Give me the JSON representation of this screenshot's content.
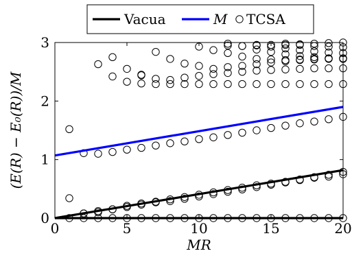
{
  "chart_data": {
    "type": "scatter",
    "xlabel": "MR",
    "ylabel": "(E(R) − E₀(R))/M",
    "xlim": [
      0,
      20
    ],
    "ylim": [
      0,
      3
    ],
    "xticks": [
      0,
      5,
      10,
      15,
      20
    ],
    "yticks": [
      0,
      1,
      2,
      3
    ],
    "x_tick_labels": [
      "0",
      "5",
      "10",
      "15",
      "20"
    ],
    "y_tick_labels": [
      "0",
      "1",
      "2",
      "3"
    ],
    "legend_position": "top-center",
    "grid": false,
    "series": [
      {
        "name": "Vacua",
        "kind": "line",
        "color": "#000000",
        "x": [
          0,
          20
        ],
        "y": [
          0,
          0.82
        ]
      },
      {
        "name": "Vacua",
        "kind": "line",
        "color": "#000000",
        "x": [
          0,
          20
        ],
        "y": [
          0,
          0
        ]
      },
      {
        "name": "M",
        "kind": "line",
        "color": "#0000ff",
        "x": [
          0,
          20
        ],
        "y": [
          1.07,
          1.9
        ]
      },
      {
        "name": "TCSA",
        "kind": "scatter",
        "marker": "open-circle",
        "color": "#000000",
        "x": [
          1,
          2,
          3,
          4,
          5,
          6,
          7,
          8,
          9,
          10,
          11,
          12,
          13,
          14,
          15,
          16,
          17,
          18,
          19,
          20,
          2,
          3,
          4,
          5,
          6,
          7,
          8,
          9,
          10,
          11,
          12,
          13,
          14,
          15,
          16,
          17,
          18,
          19,
          20,
          1,
          2,
          3,
          4,
          5,
          6,
          7,
          8,
          9,
          10,
          11,
          12,
          13,
          14,
          15,
          16,
          17,
          18,
          19,
          20,
          1,
          2,
          3,
          4,
          5,
          6,
          7,
          8,
          9,
          10,
          11,
          12,
          13,
          14,
          15,
          16,
          17,
          18,
          19,
          20,
          3,
          4,
          5,
          6,
          7,
          8,
          9,
          10,
          11,
          12,
          13,
          14,
          15,
          16,
          17,
          18,
          19,
          20,
          4,
          5,
          6,
          7,
          8,
          9,
          10,
          11,
          12,
          13,
          14,
          15,
          16,
          17,
          18,
          19,
          20,
          6,
          7,
          8,
          9,
          10,
          11,
          12,
          13,
          14,
          15,
          16,
          17,
          18,
          19,
          20,
          10,
          11,
          12,
          13,
          14,
          15,
          16,
          17,
          18,
          19,
          20,
          12,
          13,
          14,
          15,
          16,
          17,
          18,
          19,
          20,
          14,
          15,
          16,
          17,
          18,
          19,
          20,
          16,
          17,
          18,
          19,
          20,
          12,
          13,
          14,
          15,
          16,
          17,
          18,
          19,
          20
        ],
        "y": [
          0,
          0,
          0,
          0,
          0,
          0,
          0,
          0,
          0,
          0,
          0,
          0,
          0,
          0,
          0,
          0,
          0,
          0,
          0,
          0,
          0.08,
          0.1,
          0.15,
          0.19,
          0.23,
          0.27,
          0.29,
          0.33,
          0.37,
          0.41,
          0.45,
          0.49,
          0.53,
          0.57,
          0.61,
          0.65,
          0.69,
          0.71,
          0.75,
          0.34,
          0.08,
          0.12,
          0.15,
          0.21,
          0.25,
          0.28,
          0.32,
          0.36,
          0.4,
          0.44,
          0.48,
          0.52,
          0.56,
          0.59,
          0.62,
          0.66,
          0.7,
          0.74,
          0.79,
          1.52,
          1.11,
          1.1,
          1.13,
          1.17,
          1.2,
          1.24,
          1.28,
          1.31,
          1.35,
          1.38,
          1.42,
          1.46,
          1.5,
          1.54,
          1.58,
          1.62,
          1.65,
          1.69,
          1.73,
          2.63,
          2.42,
          2.33,
          2.3,
          2.29,
          2.29,
          2.29,
          2.29,
          2.29,
          2.29,
          2.29,
          2.29,
          2.29,
          2.29,
          2.29,
          2.29,
          2.29,
          2.29,
          2.75,
          2.55,
          2.44,
          2.38,
          2.36,
          2.4,
          2.43,
          2.46,
          2.48,
          2.5,
          2.52,
          2.53,
          2.54,
          2.55,
          2.56,
          2.56,
          2.56,
          2.45,
          2.84,
          2.72,
          2.64,
          2.6,
          2.55,
          2.58,
          2.6,
          2.63,
          2.66,
          2.68,
          2.7,
          2.71,
          2.72,
          2.73,
          2.93,
          2.87,
          2.82,
          2.76,
          2.72,
          2.71,
          2.7,
          2.71,
          2.72,
          2.73,
          2.73,
          2.98,
          2.94,
          2.88,
          2.84,
          2.8,
          2.77,
          2.75,
          2.73,
          2.72,
          2.96,
          2.93,
          2.9,
          2.87,
          2.85,
          2.83,
          2.82,
          2.98,
          2.96,
          2.94,
          2.93,
          2.92,
          2.95,
          2.94,
          2.95,
          2.96,
          2.96,
          2.97,
          2.98,
          2.99,
          3.0
        ]
      }
    ],
    "legend": [
      {
        "label": "Vacua",
        "style": "line",
        "color": "#000000"
      },
      {
        "label": "M",
        "style": "line",
        "color": "#0000ff"
      },
      {
        "label": "TCSA",
        "style": "open-circle",
        "color": "#000000"
      }
    ]
  }
}
